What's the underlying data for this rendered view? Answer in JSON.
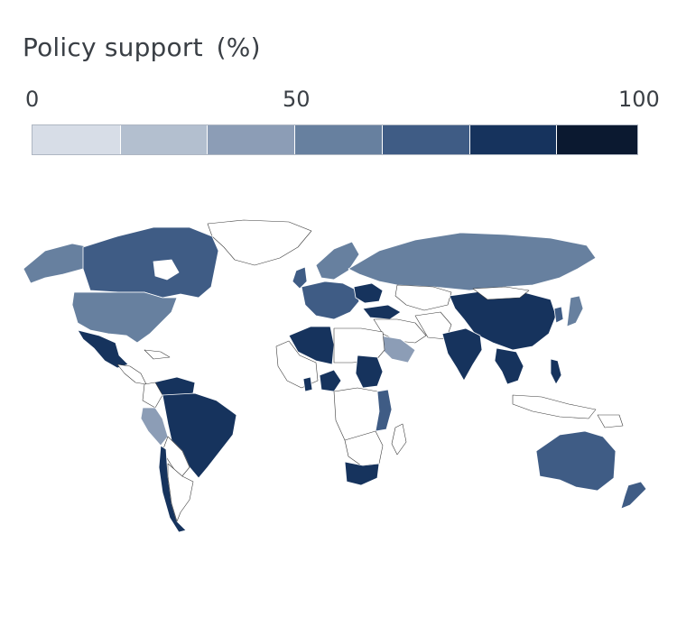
{
  "title": "Policy support  (%)",
  "legend": {
    "ticks": [
      "0",
      "50",
      "100"
    ],
    "bins": [
      {
        "range": [
          0,
          14.3
        ],
        "color": "#d7dde7"
      },
      {
        "range": [
          14.3,
          28.6
        ],
        "color": "#b3bfcf"
      },
      {
        "range": [
          28.6,
          42.9
        ],
        "color": "#8c9db6"
      },
      {
        "range": [
          42.9,
          57.1
        ],
        "color": "#67809f"
      },
      {
        "range": [
          57.1,
          71.4
        ],
        "color": "#3f5c85"
      },
      {
        "range": [
          71.4,
          85.7
        ],
        "color": "#16335d"
      },
      {
        "range": [
          85.7,
          100
        ],
        "color": "#0b1930"
      }
    ]
  },
  "map": {
    "colors": {
      "no_data": "#ffffff",
      "border": "#3b3b3b"
    }
  }
}
